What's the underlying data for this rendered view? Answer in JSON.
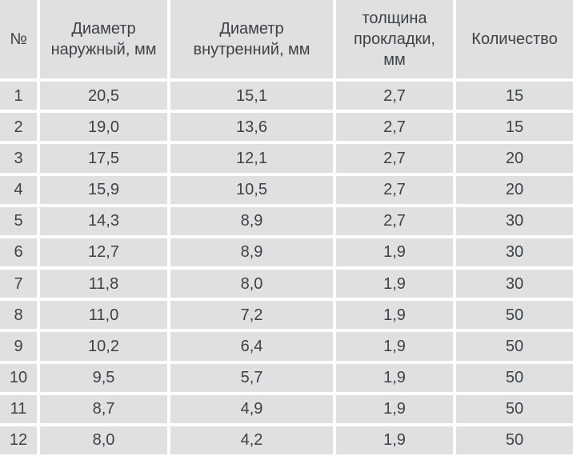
{
  "table": {
    "columns": [
      "№",
      "Диаметр наружный, мм",
      "Диаметр внутренний, мм",
      "толщина прокладки, мм",
      "Количество"
    ],
    "rows": [
      [
        "1",
        "20,5",
        "15,1",
        "2,7",
        "15"
      ],
      [
        "2",
        "19,0",
        "13,6",
        "2,7",
        "15"
      ],
      [
        "3",
        "17,5",
        "12,1",
        "2,7",
        "20"
      ],
      [
        "4",
        "15,9",
        "10,5",
        "2,7",
        "20"
      ],
      [
        "5",
        "14,3",
        "8,9",
        "2,7",
        "30"
      ],
      [
        "6",
        "12,7",
        "8,9",
        "1,9",
        "30"
      ],
      [
        "7",
        "11,8",
        "8,0",
        "1,9",
        "30"
      ],
      [
        "8",
        "11,0",
        "7,2",
        "1,9",
        "50"
      ],
      [
        "9",
        "10,2",
        "6,4",
        "1,9",
        "50"
      ],
      [
        "10",
        "9,5",
        "5,7",
        "1,9",
        "50"
      ],
      [
        "11",
        "8,7",
        "4,9",
        "1,9",
        "50"
      ],
      [
        "12",
        "8,0",
        "4,2",
        "1,9",
        "50"
      ]
    ],
    "colors": {
      "cell_background": "#e0e0e0",
      "gridline": "#ffffff",
      "text": "#3f4145"
    }
  }
}
